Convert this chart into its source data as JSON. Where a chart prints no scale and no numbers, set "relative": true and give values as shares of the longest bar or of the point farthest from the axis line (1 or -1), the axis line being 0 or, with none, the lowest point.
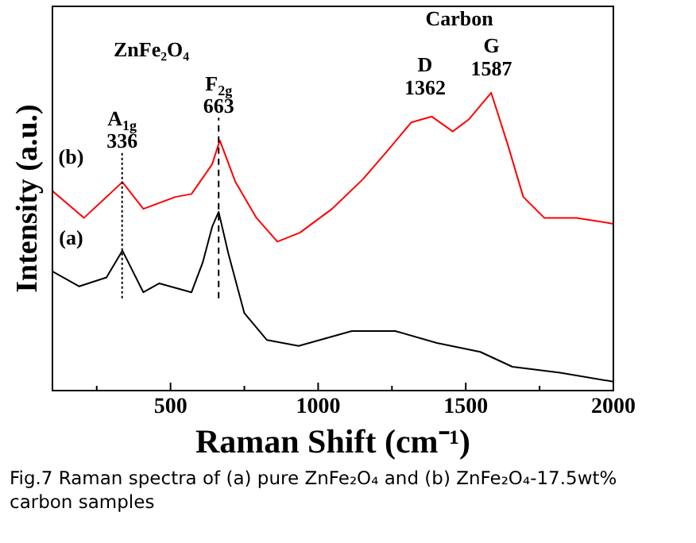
{
  "chart_data": {
    "type": "line",
    "relative": true,
    "xlabel": "Raman Shift (cm⁻¹)",
    "ylabel": "Intensity (a.u.)",
    "xlim": [
      100,
      2000
    ],
    "xticks": [
      500,
      1000,
      1500,
      2000
    ],
    "grid": false,
    "legend": false,
    "marker": "none",
    "line_style": "solid",
    "series": [
      {
        "color": "#ff0000",
        "x": [
          100,
          207,
          337,
          408,
          516,
          571,
          641,
          667,
          720,
          791,
          862,
          938,
          1047,
          1152,
          1239,
          1315,
          1385,
          1456,
          1510,
          1586,
          1641,
          1695,
          1766,
          1875,
          2000
        ],
        "values": [
          0.67,
          0.58,
          0.7,
          0.61,
          0.65,
          0.66,
          0.76,
          0.84,
          0.7,
          0.58,
          0.5,
          0.53,
          0.61,
          0.71,
          0.81,
          0.9,
          0.92,
          0.87,
          0.91,
          1.0,
          0.83,
          0.65,
          0.58,
          0.58,
          0.56
        ]
      },
      {
        "color": "#000000",
        "x": [
          100,
          190,
          283,
          337,
          408,
          462,
          571,
          609,
          641,
          663,
          696,
          750,
          826,
          934,
          1114,
          1261,
          1402,
          1549,
          1658,
          1820,
          2000
        ],
        "values": [
          0.4,
          0.35,
          0.38,
          0.47,
          0.33,
          0.36,
          0.33,
          0.43,
          0.55,
          0.6,
          0.46,
          0.26,
          0.17,
          0.15,
          0.2,
          0.2,
          0.16,
          0.13,
          0.08,
          0.06,
          0.03
        ]
      }
    ],
    "ref_lines": [
      {
        "axis": "x",
        "value": 336,
        "label": "336",
        "line_style": "dotted"
      },
      {
        "axis": "x",
        "value": 663,
        "label": "663",
        "line_style": "dashed"
      }
    ],
    "annotations": [
      "A$_{1g}$",
      "F$_{2g}$",
      "ZnFe₂O₄",
      "Carbon",
      "D",
      "1362",
      "G",
      "1587",
      "(b)",
      "(a)",
      "Fig.7 Raman spectra of (a) pure ZnFe₂O₄ and (b) ZnFe₂O₄-17.5wt% carbon samples"
    ]
  }
}
